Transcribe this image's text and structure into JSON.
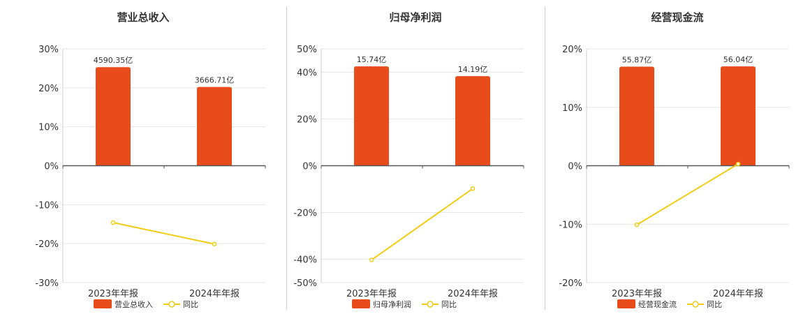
{
  "colors": {
    "bar": "#e84c1b",
    "line": "#f2cc12",
    "grid": "#e6e6e6",
    "axis": "#555555"
  },
  "legend": {
    "yoy_label": "同比"
  },
  "chart_data": [
    {
      "type": "bar",
      "title": "营业总收入",
      "categories": [
        "2023年年报",
        "2024年年报"
      ],
      "bar_labels": [
        "4590.35亿",
        "3666.71亿"
      ],
      "bar_values": [
        4590.35,
        3666.71
      ],
      "bar_series_name": "营业总收入",
      "line_series_name": "同比",
      "line_values": [
        -14.6,
        -20.1
      ],
      "ylim": [
        -30,
        30
      ],
      "yticks": [
        30,
        20,
        10,
        0,
        -10,
        -20,
        -30
      ],
      "ytick_labels": [
        "30%",
        "20%",
        "10%",
        "0%",
        "-10%",
        "-20%",
        "-30%"
      ],
      "bar_top_axis": 25.3,
      "legend_placement": "bottom-center"
    },
    {
      "type": "bar",
      "title": "归母净利润",
      "categories": [
        "2023年年报",
        "2024年年报"
      ],
      "bar_labels": [
        "15.74亿",
        "14.19亿"
      ],
      "bar_values": [
        15.74,
        14.19
      ],
      "bar_series_name": "归母净利润",
      "line_series_name": "同比",
      "line_values": [
        -40.3,
        -9.8
      ],
      "ylim": [
        -50,
        50
      ],
      "yticks": [
        50,
        40,
        20,
        0,
        -20,
        -40,
        -50
      ],
      "ytick_labels": [
        "50%",
        "40%",
        "20%",
        "0%",
        "-20%",
        "-40%",
        "-50%"
      ],
      "bar_top_axis": 42.5,
      "legend_placement": "bottom-center"
    },
    {
      "type": "bar",
      "title": "经营现金流",
      "categories": [
        "2023年年报",
        "2024年年报"
      ],
      "bar_labels": [
        "55.87亿",
        "56.04亿"
      ],
      "bar_values": [
        55.87,
        56.04
      ],
      "bar_series_name": "经营现金流",
      "line_series_name": "同比",
      "line_values": [
        -10.1,
        0.3
      ],
      "ylim": [
        -20,
        20
      ],
      "yticks": [
        20,
        10,
        0,
        -10,
        -20
      ],
      "ytick_labels": [
        "20%",
        "10%",
        "0%",
        "-10%",
        "-20%"
      ],
      "bar_top_axis": 17.0,
      "legend_placement": "bottom-center"
    }
  ]
}
